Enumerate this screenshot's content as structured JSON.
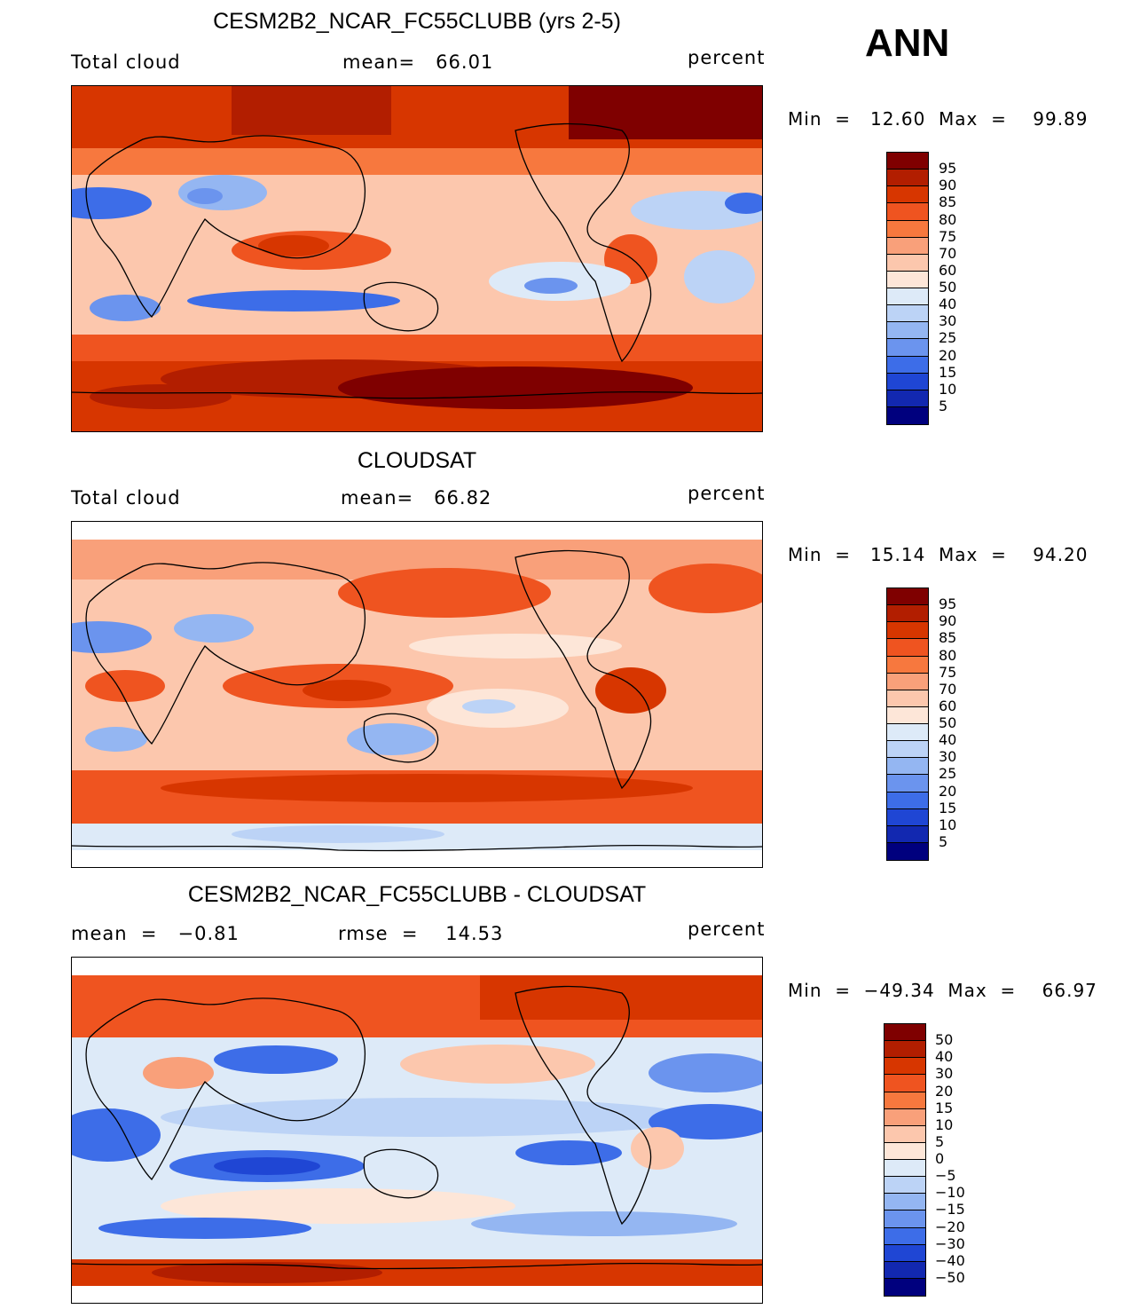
{
  "season": "ANN",
  "panels": [
    {
      "title": "CESM2B2_NCAR_FC55CLUBB (yrs 2-5)",
      "left_label": "Total cloud",
      "center_label": "mean=   66.01",
      "units": "percent",
      "minmax": "Min  =   12.60  Max  =    99.89",
      "colorbar_labels": [
        "95",
        "90",
        "85",
        "80",
        "75",
        "70",
        "60",
        "50",
        "40",
        "30",
        "25",
        "20",
        "15",
        "10",
        "5"
      ]
    },
    {
      "title": "CLOUDSAT",
      "left_label": "Total cloud",
      "center_label": "mean=   66.82",
      "units": "percent",
      "minmax": "Min  =   15.14  Max  =    94.20",
      "colorbar_labels": [
        "95",
        "90",
        "85",
        "80",
        "75",
        "70",
        "60",
        "50",
        "40",
        "30",
        "25",
        "20",
        "15",
        "10",
        "5"
      ]
    },
    {
      "title": "CESM2B2_NCAR_FC55CLUBB - CLOUDSAT",
      "left_label": "mean  =   −0.81",
      "center_label": "rmse  =    14.53",
      "units": "percent",
      "minmax": "Min  =  −49.34  Max  =    66.97",
      "colorbar_labels": [
        "50",
        "40",
        "30",
        "20",
        "15",
        "10",
        "5",
        "0",
        "−5",
        "−10",
        "−15",
        "−20",
        "−30",
        "−40",
        "−50"
      ]
    }
  ],
  "colors": {
    "palette": [
      "#7f0000",
      "#b21e00",
      "#d73600",
      "#ef5420",
      "#f7783e",
      "#f9a07a",
      "#fcc7ad",
      "#fde6d8",
      "#ddeaf8",
      "#bcd3f6",
      "#94b6f2",
      "#6b94ee",
      "#3d6de8",
      "#1f46d4",
      "#1228b0",
      "#00007e"
    ]
  }
}
